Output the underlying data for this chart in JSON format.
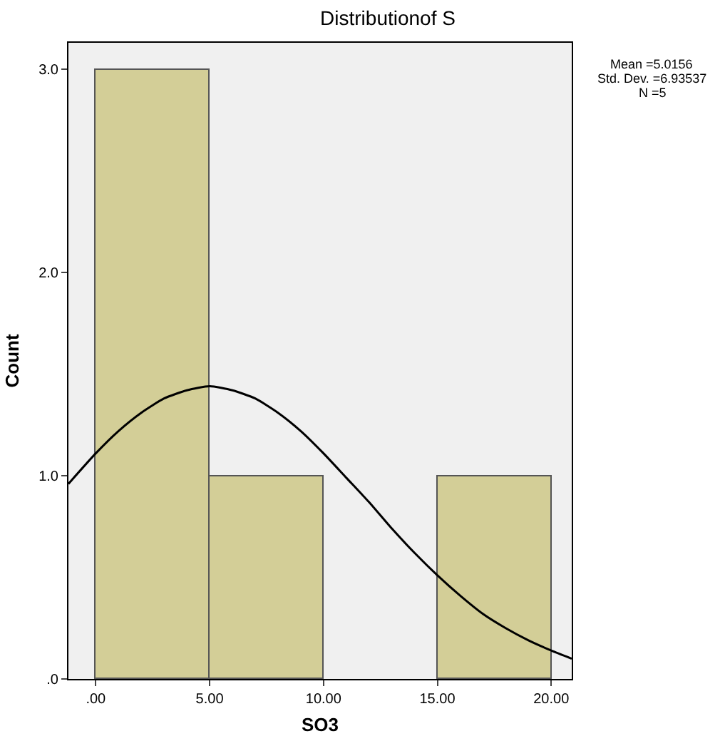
{
  "chart_data": {
    "type": "histogram",
    "title": "Distributionof S",
    "xlabel": "SO3",
    "ylabel": "Count",
    "bins": [
      0,
      5,
      10,
      15,
      20
    ],
    "values": [
      3,
      1,
      0,
      1
    ],
    "color": "#d3ce97",
    "series": [
      {
        "type": "line",
        "color": "#000000",
        "x": [
          -1.2,
          0,
          1,
          2,
          3,
          4,
          5,
          6,
          7,
          8,
          9,
          10,
          11,
          12,
          13,
          14,
          15,
          16,
          17,
          18,
          19,
          20,
          20.9
        ],
        "values": [
          0.96,
          1.11,
          1.22,
          1.31,
          1.38,
          1.42,
          1.44,
          1.42,
          1.38,
          1.31,
          1.22,
          1.11,
          0.99,
          0.87,
          0.74,
          0.62,
          0.51,
          0.41,
          0.32,
          0.25,
          0.19,
          0.14,
          0.1
        ]
      }
    ],
    "xlim": [
      -1.2,
      20.9
    ],
    "ylim": [
      0,
      3.13
    ],
    "xticks": [
      {
        "value": 0,
        "label": ".00"
      },
      {
        "value": 5,
        "label": "5.00"
      },
      {
        "value": 10,
        "label": "10.00"
      },
      {
        "value": 15,
        "label": "15.00"
      },
      {
        "value": 20,
        "label": "20.00"
      }
    ],
    "yticks": [
      {
        "value": 0,
        "label": ".0"
      },
      {
        "value": 1,
        "label": "1.0"
      },
      {
        "value": 2,
        "label": "2.0"
      },
      {
        "value": 3,
        "label": "3.0"
      }
    ],
    "annotations": [
      "Mean =5.0156",
      "Std. Dev. =6.93537",
      "N =5"
    ],
    "grid": false,
    "marker": "none",
    "line_style": "solid"
  }
}
